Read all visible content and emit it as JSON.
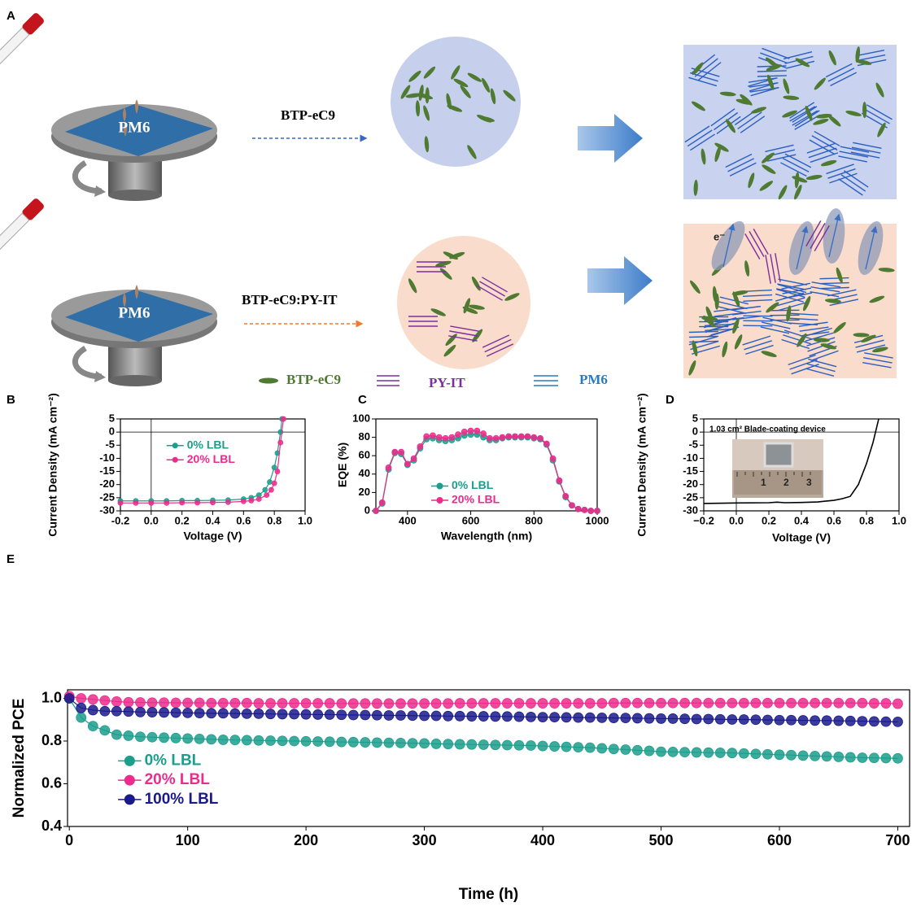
{
  "panel_labels": [
    "A",
    "B",
    "C",
    "D",
    "E"
  ],
  "diagram": {
    "substrate_label_top": "PM6",
    "substrate_label_bottom": "PM6",
    "arrow_label_top": "BTP-eC9",
    "arrow_label_bottom": "BTP-eC9:PY-IT",
    "electron_label": "e⁻",
    "legend": [
      "BTP-eC9",
      "PY-IT",
      "PM6"
    ],
    "inset_ruler_labels": [
      "1",
      "2",
      "3"
    ]
  },
  "chart_data": [
    {
      "type": "line",
      "xlabel": "Voltage (V)",
      "ylabel": "Current Density (mA cm⁻²)",
      "xlim": [
        -0.2,
        1.0
      ],
      "ylim": [
        -30,
        5
      ],
      "xticks": [
        -0.2,
        {
          "value": 0,
          "label": "0.0"
        },
        0.2,
        0.4,
        0.6,
        0.8,
        {
          "value": 1,
          "label": "1.0"
        }
      ],
      "yticks": [
        5,
        0,
        -5,
        -10,
        -15,
        -20,
        -25,
        -30
      ],
      "zero_lines": true,
      "markers": true,
      "legend": "upper center",
      "series": [
        {
          "name": "0% LBL",
          "color": "#1b9e8c",
          "x": [
            -0.2,
            -0.1,
            0,
            0.1,
            0.2,
            0.3,
            0.4,
            0.5,
            0.6,
            0.65,
            0.7,
            0.74,
            0.77,
            0.8,
            0.82,
            0.84,
            0.85
          ],
          "values": [
            -26.2,
            -26.2,
            -26.2,
            -26.2,
            -26.1,
            -26.1,
            -26.0,
            -25.9,
            -25.5,
            -25.0,
            -24.0,
            -22,
            -19,
            -13.5,
            -8,
            0,
            5
          ]
        },
        {
          "name": "20% LBL",
          "color": "#ec2c8c",
          "x": [
            -0.2,
            -0.1,
            0,
            0.1,
            0.2,
            0.3,
            0.4,
            0.5,
            0.6,
            0.65,
            0.7,
            0.75,
            0.78,
            0.8,
            0.82,
            0.84,
            0.86
          ],
          "values": [
            -27.0,
            -27.0,
            -27.0,
            -27.0,
            -26.9,
            -26.9,
            -26.8,
            -26.7,
            -26.4,
            -26.1,
            -25.5,
            -24,
            -22,
            -19.5,
            -15,
            -4,
            5
          ]
        }
      ]
    },
    {
      "type": "line",
      "xlabel": "Wavelength (nm)",
      "ylabel": "EQE (%)",
      "xlim": [
        300,
        1000
      ],
      "ylim": [
        0,
        100
      ],
      "xticks": [
        400,
        600,
        800,
        1000
      ],
      "yticks": [
        0,
        20,
        40,
        60,
        80,
        100
      ],
      "markers": true,
      "legend": "lower center",
      "x": [
        300,
        320,
        340,
        360,
        380,
        400,
        420,
        440,
        460,
        480,
        500,
        520,
        540,
        560,
        580,
        600,
        620,
        640,
        660,
        680,
        700,
        720,
        740,
        760,
        780,
        800,
        820,
        840,
        860,
        880,
        900,
        920,
        940,
        960,
        980,
        1000
      ],
      "series": [
        {
          "name": "0% LBL",
          "color": "#1b9e8c",
          "values": [
            0,
            8,
            45,
            63,
            62,
            50,
            55,
            68,
            78,
            79,
            77,
            76,
            77,
            79,
            82,
            83,
            83,
            80,
            77,
            77,
            79,
            80,
            80,
            80,
            80,
            79,
            78,
            72,
            55,
            32,
            15,
            6,
            2,
            1,
            0,
            0
          ]
        },
        {
          "name": "20% LBL",
          "color": "#ec2c8c",
          "values": [
            0,
            9,
            47,
            64,
            64,
            51,
            57,
            70,
            81,
            82,
            80,
            79,
            80,
            83,
            86,
            87,
            87,
            84,
            79,
            79,
            80,
            81,
            81,
            81,
            81,
            80,
            79,
            73,
            57,
            33,
            16,
            6,
            2,
            1,
            0,
            0
          ]
        }
      ]
    },
    {
      "type": "line",
      "xlabel": "Voltage (V)",
      "ylabel": "Current Density (mA cm⁻²)",
      "annotation": "1.03 cm² Blade-coating device",
      "xlim": [
        -0.2,
        1.0
      ],
      "ylim": [
        -30,
        5
      ],
      "xticks": [
        {
          "value": -0.2,
          "label": "−0.2"
        },
        {
          "value": 0,
          "label": "0.0"
        },
        0.2,
        0.4,
        0.6,
        0.8,
        {
          "value": 1,
          "label": "1.0"
        }
      ],
      "yticks": [
        5,
        0,
        -5,
        -10,
        -15,
        -20,
        -25,
        -30
      ],
      "zero_lines": true,
      "markers": false,
      "series": [
        {
          "color": "#000000",
          "x": [
            -0.2,
            0,
            0.2,
            0.25,
            0.3,
            0.4,
            0.5,
            0.6,
            0.65,
            0.7,
            0.75,
            0.8,
            0.84,
            0.875
          ],
          "values": [
            -27.2,
            -27.0,
            -26.9,
            -26.7,
            -26.9,
            -26.8,
            -26.6,
            -26.0,
            -25.4,
            -24.5,
            -20,
            -12,
            -4,
            5
          ]
        }
      ]
    },
    {
      "type": "line",
      "xlabel": "Time (h)",
      "ylabel": "Normalized PCE",
      "xlim": [
        -1.5,
        710
      ],
      "ylim": [
        0.4,
        1.04
      ],
      "xticks": [
        0,
        100,
        200,
        300,
        400,
        500,
        600,
        700
      ],
      "yticks": [
        0.4,
        0.6,
        0.8,
        {
          "value": 1,
          "label": "1.0"
        }
      ],
      "markers": true,
      "legend": "center left",
      "x": [
        0,
        10,
        20,
        30,
        40,
        50,
        60,
        70,
        80,
        90,
        100,
        110,
        120,
        130,
        140,
        150,
        160,
        170,
        180,
        190,
        200,
        210,
        220,
        230,
        240,
        250,
        260,
        270,
        280,
        290,
        300,
        310,
        320,
        330,
        340,
        350,
        360,
        370,
        380,
        390,
        400,
        410,
        420,
        430,
        440,
        450,
        460,
        470,
        480,
        490,
        500,
        510,
        520,
        530,
        540,
        550,
        560,
        570,
        580,
        590,
        600,
        610,
        620,
        630,
        640,
        650,
        660,
        670,
        680,
        690,
        700
      ],
      "series": [
        {
          "name": "0% LBL",
          "color": "#1b9e8c",
          "values": [
            1.0,
            0.91,
            0.87,
            0.85,
            0.83,
            0.825,
            0.82,
            0.818,
            0.816,
            0.814,
            0.812,
            0.81,
            0.808,
            0.806,
            0.805,
            0.804,
            0.803,
            0.802,
            0.801,
            0.8,
            0.799,
            0.798,
            0.797,
            0.796,
            0.795,
            0.794,
            0.793,
            0.792,
            0.791,
            0.79,
            0.789,
            0.787,
            0.786,
            0.785,
            0.784,
            0.783,
            0.782,
            0.781,
            0.78,
            0.779,
            0.777,
            0.775,
            0.773,
            0.771,
            0.769,
            0.766,
            0.763,
            0.76,
            0.757,
            0.754,
            0.75,
            0.749,
            0.748,
            0.747,
            0.746,
            0.745,
            0.744,
            0.742,
            0.74,
            0.738,
            0.736,
            0.734,
            0.732,
            0.73,
            0.728,
            0.726,
            0.724,
            0.722,
            0.721,
            0.72,
            0.719
          ]
        },
        {
          "name": "20% LBL",
          "color": "#ec2c8c",
          "values": [
            1.01,
            1.0,
            0.995,
            0.99,
            0.985,
            0.982,
            0.981,
            0.98,
            0.98,
            0.979,
            0.979,
            0.979,
            0.978,
            0.978,
            0.978,
            0.978,
            0.977,
            0.977,
            0.977,
            0.977,
            0.977,
            0.977,
            0.977,
            0.976,
            0.976,
            0.976,
            0.976,
            0.976,
            0.976,
            0.976,
            0.976,
            0.976,
            0.976,
            0.977,
            0.977,
            0.977,
            0.977,
            0.977,
            0.977,
            0.977,
            0.977,
            0.977,
            0.977,
            0.977,
            0.977,
            0.977,
            0.978,
            0.978,
            0.978,
            0.978,
            0.978,
            0.978,
            0.978,
            0.978,
            0.978,
            0.978,
            0.978,
            0.978,
            0.978,
            0.978,
            0.978,
            0.978,
            0.978,
            0.978,
            0.978,
            0.978,
            0.978,
            0.978,
            0.977,
            0.977,
            0.975
          ]
        },
        {
          "name": "100% LBL",
          "color": "#1a1a8c",
          "values": [
            1.0,
            0.955,
            0.945,
            0.94,
            0.94,
            0.938,
            0.936,
            0.935,
            0.934,
            0.933,
            0.932,
            0.931,
            0.93,
            0.93,
            0.929,
            0.928,
            0.928,
            0.927,
            0.926,
            0.926,
            0.925,
            0.924,
            0.924,
            0.923,
            0.922,
            0.922,
            0.921,
            0.92,
            0.92,
            0.919,
            0.918,
            0.918,
            0.917,
            0.917,
            0.916,
            0.916,
            0.915,
            0.915,
            0.914,
            0.913,
            0.912,
            0.912,
            0.911,
            0.91,
            0.91,
            0.909,
            0.908,
            0.908,
            0.907,
            0.906,
            0.905,
            0.905,
            0.904,
            0.903,
            0.903,
            0.902,
            0.901,
            0.901,
            0.9,
            0.899,
            0.898,
            0.898,
            0.897,
            0.896,
            0.896,
            0.895,
            0.894,
            0.893,
            0.892,
            0.891,
            0.89
          ]
        }
      ]
    }
  ]
}
